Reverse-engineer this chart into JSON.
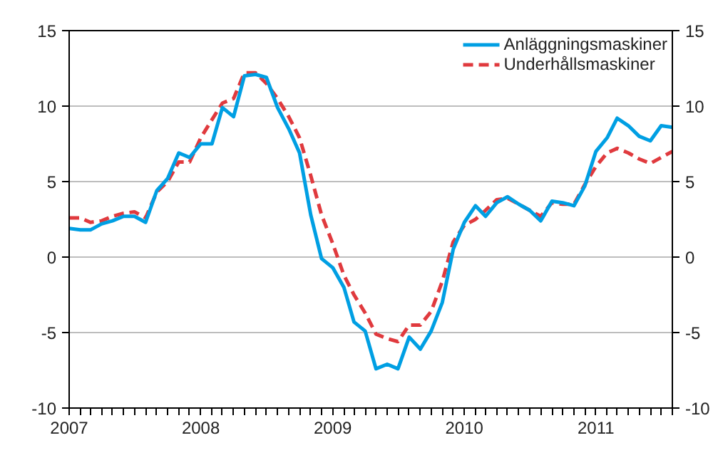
{
  "chart_data": {
    "type": "line",
    "x": [
      "2007-01",
      "2007-02",
      "2007-03",
      "2007-04",
      "2007-05",
      "2007-06",
      "2007-07",
      "2007-08",
      "2007-09",
      "2007-10",
      "2007-11",
      "2007-12",
      "2008-01",
      "2008-02",
      "2008-03",
      "2008-04",
      "2008-05",
      "2008-06",
      "2008-07",
      "2008-08",
      "2008-09",
      "2008-10",
      "2008-11",
      "2008-12",
      "2009-01",
      "2009-02",
      "2009-03",
      "2009-04",
      "2009-05",
      "2009-06",
      "2009-07",
      "2009-08",
      "2009-09",
      "2009-10",
      "2009-11",
      "2009-12",
      "2010-01",
      "2010-02",
      "2010-03",
      "2010-04",
      "2010-05",
      "2010-06",
      "2010-07",
      "2010-08",
      "2010-09",
      "2010-10",
      "2010-11",
      "2010-12",
      "2011-01",
      "2011-02",
      "2011-03",
      "2011-04",
      "2011-05",
      "2011-06",
      "2011-07",
      "2011-08"
    ],
    "series": [
      {
        "name": "Anläggningsmaskiner",
        "color": "#009fe3",
        "line_style": "solid",
        "values": [
          1.9,
          1.8,
          1.8,
          2.2,
          2.4,
          2.7,
          2.7,
          2.3,
          4.4,
          5.2,
          6.9,
          6.6,
          7.5,
          7.5,
          9.9,
          9.3,
          12.0,
          12.1,
          11.9,
          9.9,
          8.5,
          6.9,
          2.8,
          -0.1,
          -0.7,
          -2.0,
          -4.3,
          -4.9,
          -7.4,
          -7.1,
          -7.4,
          -5.3,
          -6.1,
          -4.9,
          -3.0,
          0.5,
          2.3,
          3.4,
          2.7,
          3.6,
          4.0,
          3.5,
          3.1,
          2.4,
          3.7,
          3.6,
          3.4,
          4.7,
          7.0,
          7.9,
          9.2,
          8.7,
          8.0,
          7.7,
          8.7,
          8.6
        ]
      },
      {
        "name": "Underhållsmaskiner",
        "color": "#e03a3e",
        "line_style": "dashed",
        "values": [
          2.6,
          2.6,
          2.3,
          2.4,
          2.7,
          2.9,
          3.0,
          2.6,
          4.3,
          5.0,
          6.3,
          6.3,
          7.9,
          9.1,
          10.2,
          10.5,
          12.2,
          12.2,
          11.5,
          10.5,
          9.3,
          7.9,
          5.4,
          2.8,
          0.9,
          -1.2,
          -2.5,
          -3.7,
          -5.1,
          -5.4,
          -5.6,
          -4.5,
          -4.5,
          -3.6,
          -1.6,
          1.0,
          2.1,
          2.5,
          3.1,
          3.8,
          3.9,
          3.5,
          3.1,
          2.7,
          3.6,
          3.5,
          3.5,
          4.8,
          6.0,
          6.9,
          7.2,
          6.9,
          6.5,
          6.2,
          6.6,
          7.0
        ]
      }
    ],
    "xlim": [
      "2007-01",
      "2011-08"
    ],
    "xticks": [
      "2007",
      "2008",
      "2009",
      "2010",
      "2011"
    ],
    "ylim": [
      -10,
      15
    ],
    "yticks": [
      -10,
      -5,
      0,
      5,
      10,
      15
    ],
    "y2lim": [
      -10,
      15
    ],
    "y2ticks": [
      -10,
      -5,
      0,
      5,
      10,
      15
    ],
    "grid": "y",
    "legend": "top right"
  }
}
